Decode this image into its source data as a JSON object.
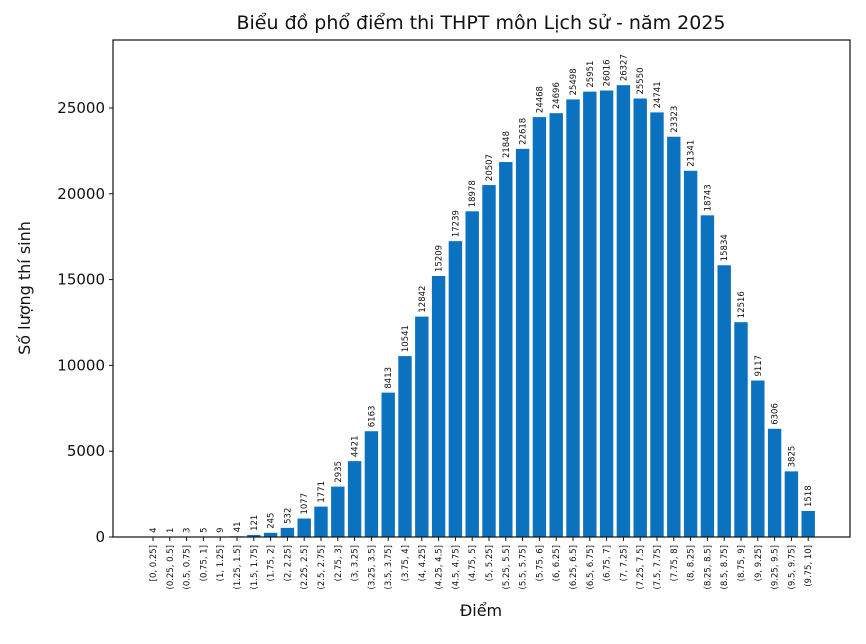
{
  "chart_data": {
    "type": "bar",
    "title": "Biểu đồ phổ điểm thi THPT môn Lịch sử - năm 2025",
    "xlabel": "Điểm",
    "ylabel": "Số lượng thí sinh",
    "ylim": [
      0,
      28960
    ],
    "yticks": [
      0,
      5000,
      10000,
      15000,
      20000,
      25000
    ],
    "grid": false,
    "bar_color": "#0b72c0",
    "categories": [
      "[0, 0.25]",
      "(0.25, 0.5]",
      "(0.5, 0.75]",
      "(0.75, 1]",
      "(1, 1.25]",
      "(1.25, 1.5]",
      "(1.5, 1.75]",
      "(1.75, 2]",
      "(2, 2.25]",
      "(2.25, 2.5]",
      "(2.5, 2.75]",
      "(2.75, 3]",
      "(3, 3.25]",
      "(3.25, 3.5]",
      "(3.5, 3.75]",
      "(3.75, 4]",
      "(4, 4.25]",
      "(4.25, 4.5]",
      "(4.5, 4.75]",
      "(4.75, 5]",
      "(5, 5.25]",
      "(5.25, 5.5]",
      "(5.5, 5.75]",
      "(5.75, 6]",
      "(6, 6.25]",
      "(6.25, 6.5]",
      "(6.5, 6.75]",
      "(6.75, 7]",
      "(7, 7.25]",
      "(7.25, 7.5]",
      "(7.5, 7.75]",
      "(7.75, 8]",
      "(8, 8.25]",
      "(8.25, 8.5]",
      "(8.5, 8.75]",
      "(8.75, 9]",
      "(9, 9.25]",
      "(9.25, 9.5]",
      "(9.5, 9.75]",
      "(9.75, 10]"
    ],
    "values": [
      4,
      1,
      3,
      5,
      9,
      41,
      121,
      245,
      532,
      1077,
      1771,
      2935,
      4421,
      6163,
      8413,
      10541,
      12842,
      15209,
      17239,
      18978,
      20507,
      21848,
      22618,
      24468,
      24696,
      25498,
      25951,
      26016,
      26327,
      25550,
      24741,
      23323,
      21341,
      18743,
      15834,
      12516,
      9117,
      6306,
      3825,
      1518
    ]
  }
}
